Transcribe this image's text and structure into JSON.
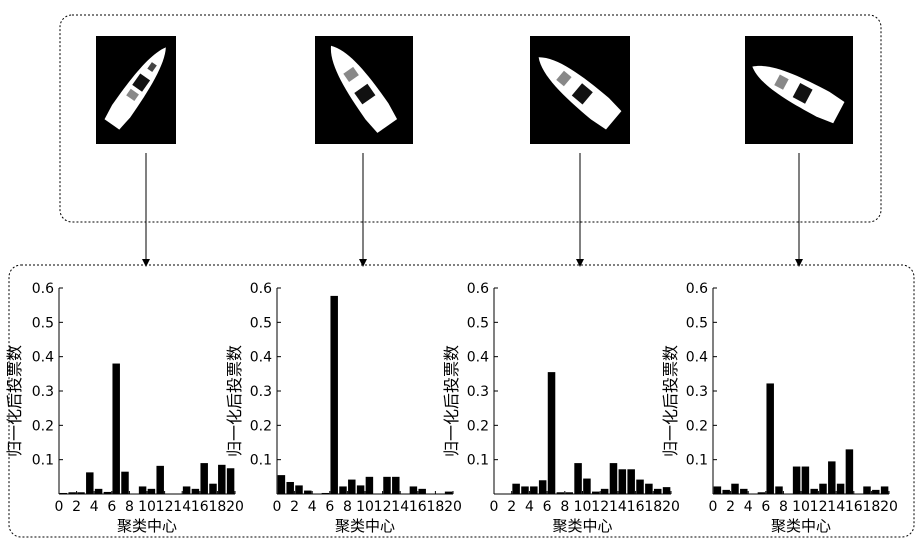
{
  "chart_data": [
    {
      "type": "bar",
      "xlabel": "聚类中心",
      "ylabel": "归一化后投票数",
      "ylim": [
        0,
        0.6
      ],
      "xlim": [
        0,
        20
      ],
      "x_ticks": [
        0,
        2,
        4,
        6,
        8,
        10,
        12,
        14,
        16,
        18,
        20
      ],
      "y_ticks": [
        0.1,
        0.2,
        0.3,
        0.4,
        0.5,
        0.6
      ],
      "x": [
        1,
        2,
        3,
        4,
        5,
        6,
        7,
        8,
        9,
        10,
        11,
        12,
        13,
        14,
        15,
        16,
        17,
        18,
        19,
        20
      ],
      "values": [
        0.003,
        0.005,
        0.005,
        0.063,
        0.015,
        0.006,
        0.38,
        0.065,
        0.0,
        0.022,
        0.015,
        0.082,
        0.0,
        0.0,
        0.022,
        0.015,
        0.09,
        0.03,
        0.085,
        0.075
      ]
    },
    {
      "type": "bar",
      "xlabel": "聚类中心",
      "ylabel": "归一化后投票数",
      "ylim": [
        0,
        0.6
      ],
      "xlim": [
        0,
        20
      ],
      "x_ticks": [
        0,
        2,
        4,
        6,
        8,
        10,
        12,
        14,
        16,
        18,
        20
      ],
      "y_ticks": [
        0.1,
        0.2,
        0.3,
        0.4,
        0.5,
        0.6
      ],
      "x": [
        1,
        2,
        3,
        4,
        5,
        6,
        7,
        8,
        9,
        10,
        11,
        12,
        13,
        14,
        15,
        16,
        17,
        18,
        19,
        20
      ],
      "values": [
        0.055,
        0.035,
        0.025,
        0.01,
        0.0,
        0.003,
        0.577,
        0.022,
        0.042,
        0.025,
        0.05,
        0.0,
        0.05,
        0.05,
        0.0,
        0.022,
        0.015,
        0.0,
        0.0,
        0.007
      ]
    },
    {
      "type": "bar",
      "xlabel": "聚类中心",
      "ylabel": "归一化后投票数",
      "ylim": [
        0,
        0.6
      ],
      "xlim": [
        0,
        20
      ],
      "x_ticks": [
        0,
        2,
        4,
        6,
        8,
        10,
        12,
        14,
        16,
        18,
        20
      ],
      "y_ticks": [
        0.1,
        0.2,
        0.3,
        0.4,
        0.5,
        0.6
      ],
      "x": [
        1,
        2,
        3,
        4,
        5,
        6,
        7,
        8,
        9,
        10,
        11,
        12,
        13,
        14,
        15,
        16,
        17,
        18,
        19,
        20
      ],
      "values": [
        0.0,
        0.0,
        0.03,
        0.022,
        0.022,
        0.04,
        0.355,
        0.005,
        0.005,
        0.09,
        0.045,
        0.007,
        0.015,
        0.09,
        0.072,
        0.072,
        0.042,
        0.03,
        0.015,
        0.02
      ]
    },
    {
      "type": "bar",
      "xlabel": "聚类中心",
      "ylabel": "归一化后投票数",
      "ylim": [
        0,
        0.6
      ],
      "xlim": [
        0,
        20
      ],
      "x_ticks": [
        0,
        2,
        4,
        6,
        8,
        10,
        12,
        14,
        16,
        18,
        20
      ],
      "y_ticks": [
        0.1,
        0.2,
        0.3,
        0.4,
        0.5,
        0.6
      ],
      "x": [
        1,
        2,
        3,
        4,
        5,
        6,
        7,
        8,
        9,
        10,
        11,
        12,
        13,
        14,
        15,
        16,
        17,
        18,
        19,
        20
      ],
      "values": [
        0.022,
        0.012,
        0.03,
        0.015,
        0.0,
        0.005,
        0.322,
        0.022,
        0.0,
        0.08,
        0.08,
        0.015,
        0.03,
        0.095,
        0.03,
        0.13,
        0.0,
        0.022,
        0.012,
        0.022
      ]
    }
  ]
}
